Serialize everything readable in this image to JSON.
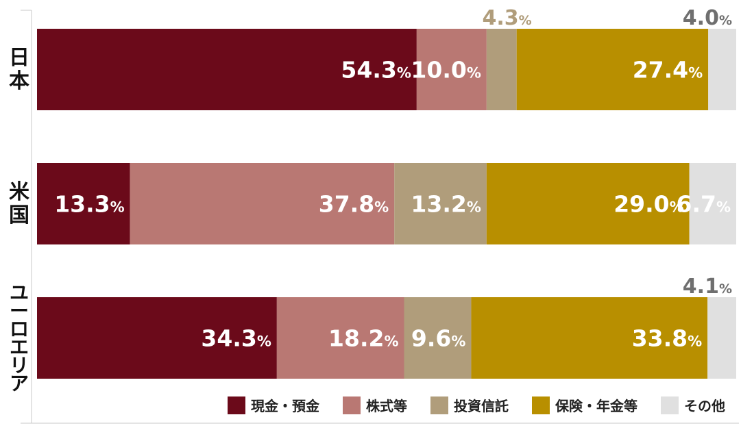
{
  "chart_data": {
    "type": "bar",
    "orientation": "horizontal",
    "stacked": true,
    "percent_stacked": true,
    "unit": "%",
    "categories": [
      "日本",
      "米国",
      "ユーロエリア"
    ],
    "series": [
      {
        "name": "現金・預金",
        "color": "#6b0a1a",
        "values": [
          54.3,
          13.3,
          34.3
        ]
      },
      {
        "name": "株式等",
        "color": "#b97873",
        "values": [
          10.0,
          37.8,
          18.2
        ]
      },
      {
        "name": "投資信託",
        "color": "#b09d7b",
        "values": [
          4.3,
          13.2,
          9.6
        ]
      },
      {
        "name": "保険・年金等",
        "color": "#b88f00",
        "values": [
          27.4,
          29.0,
          33.8
        ]
      },
      {
        "name": "その他",
        "color": "#e0e0e0",
        "values": [
          4.0,
          6.7,
          4.1
        ]
      }
    ],
    "xlim": [
      0,
      100
    ],
    "grid": false,
    "legend_position": "bottom-right",
    "outside_label_colors": {
      "投資信託": "#b09d7b",
      "その他": "#6f6f6f"
    },
    "inside_label_color": "#ffffff"
  }
}
